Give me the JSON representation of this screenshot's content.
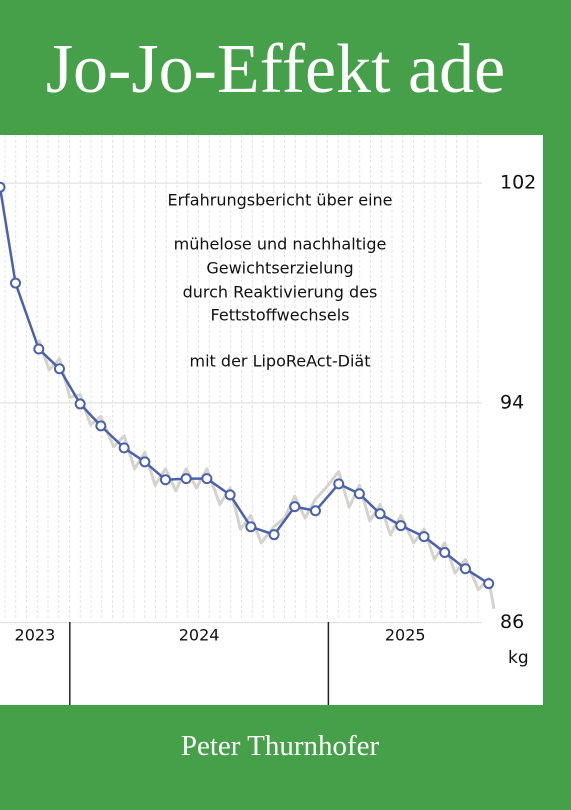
{
  "cover": {
    "title": "Jo-Jo-Effekt ade",
    "author": "Peter Thurnhofer"
  },
  "chart_data": {
    "type": "line",
    "subtitle_lines": [
      "Erfahrungsbericht über eine",
      "mühelose und nachhaltige",
      "Gewichtserzielung",
      "durch Reaktivierung des",
      "Fettstoffwechsels",
      "mit der LipoReAct-Diät"
    ],
    "y_axis_label": "kg",
    "xlim": [
      2023.73,
      2025.83
    ],
    "xticks": [
      2024,
      2025
    ],
    "year_labels": [
      "2023",
      "2024",
      "2025"
    ],
    "ylim": [
      83,
      103.75
    ],
    "yticks": [
      86,
      94,
      102
    ],
    "grid": true,
    "series": [
      {
        "color": "#d6d2cc",
        "markers": false,
        "x": [
          2023.88,
          2023.92,
          2023.96,
          2024.0,
          2024.04,
          2024.08,
          2024.12,
          2024.17,
          2024.21,
          2024.25,
          2024.29,
          2024.33,
          2024.37,
          2024.41,
          2024.45,
          2024.49,
          2024.53,
          2024.58,
          2024.62,
          2024.66,
          2024.7,
          2024.74,
          2024.79,
          2024.83,
          2024.87,
          2024.91,
          2024.95,
          2024.99,
          2025.04,
          2025.08,
          2025.12,
          2025.16,
          2025.2,
          2025.24,
          2025.28,
          2025.33,
          2025.37,
          2025.41,
          2025.45,
          2025.49,
          2025.53,
          2025.58,
          2025.62,
          2025.64
        ],
        "values": [
          96.3,
          95.2,
          95.6,
          94.2,
          94.3,
          93.2,
          93.5,
          92.4,
          92.8,
          91.6,
          92.2,
          91.0,
          91.6,
          90.8,
          91.6,
          90.9,
          91.6,
          90.3,
          90.9,
          89.4,
          89.9,
          88.9,
          89.5,
          89.8,
          90.6,
          89.8,
          90.5,
          90.9,
          91.5,
          90.2,
          91.0,
          89.7,
          90.3,
          89.2,
          89.9,
          88.9,
          89.4,
          88.3,
          88.9,
          87.8,
          88.3,
          87.2,
          87.6,
          86.5
        ]
      },
      {
        "color": "#4a62ad",
        "markers": true,
        "x": [
          2023.73,
          2023.79,
          2023.88,
          2023.96,
          2024.04,
          2024.12,
          2024.21,
          2024.29,
          2024.37,
          2024.45,
          2024.53,
          2024.62,
          2024.7,
          2024.79,
          2024.87,
          2024.95,
          2025.04,
          2025.12,
          2025.2,
          2025.28,
          2025.37,
          2025.45,
          2025.53,
          2025.62
        ],
        "values": [
          101.85,
          98.36,
          95.96,
          95.24,
          93.96,
          93.16,
          92.36,
          91.85,
          91.2,
          91.24,
          91.24,
          90.65,
          89.49,
          89.2,
          90.22,
          90.07,
          91.05,
          90.69,
          89.96,
          89.53,
          89.13,
          88.55,
          87.96,
          87.42
        ]
      }
    ]
  }
}
